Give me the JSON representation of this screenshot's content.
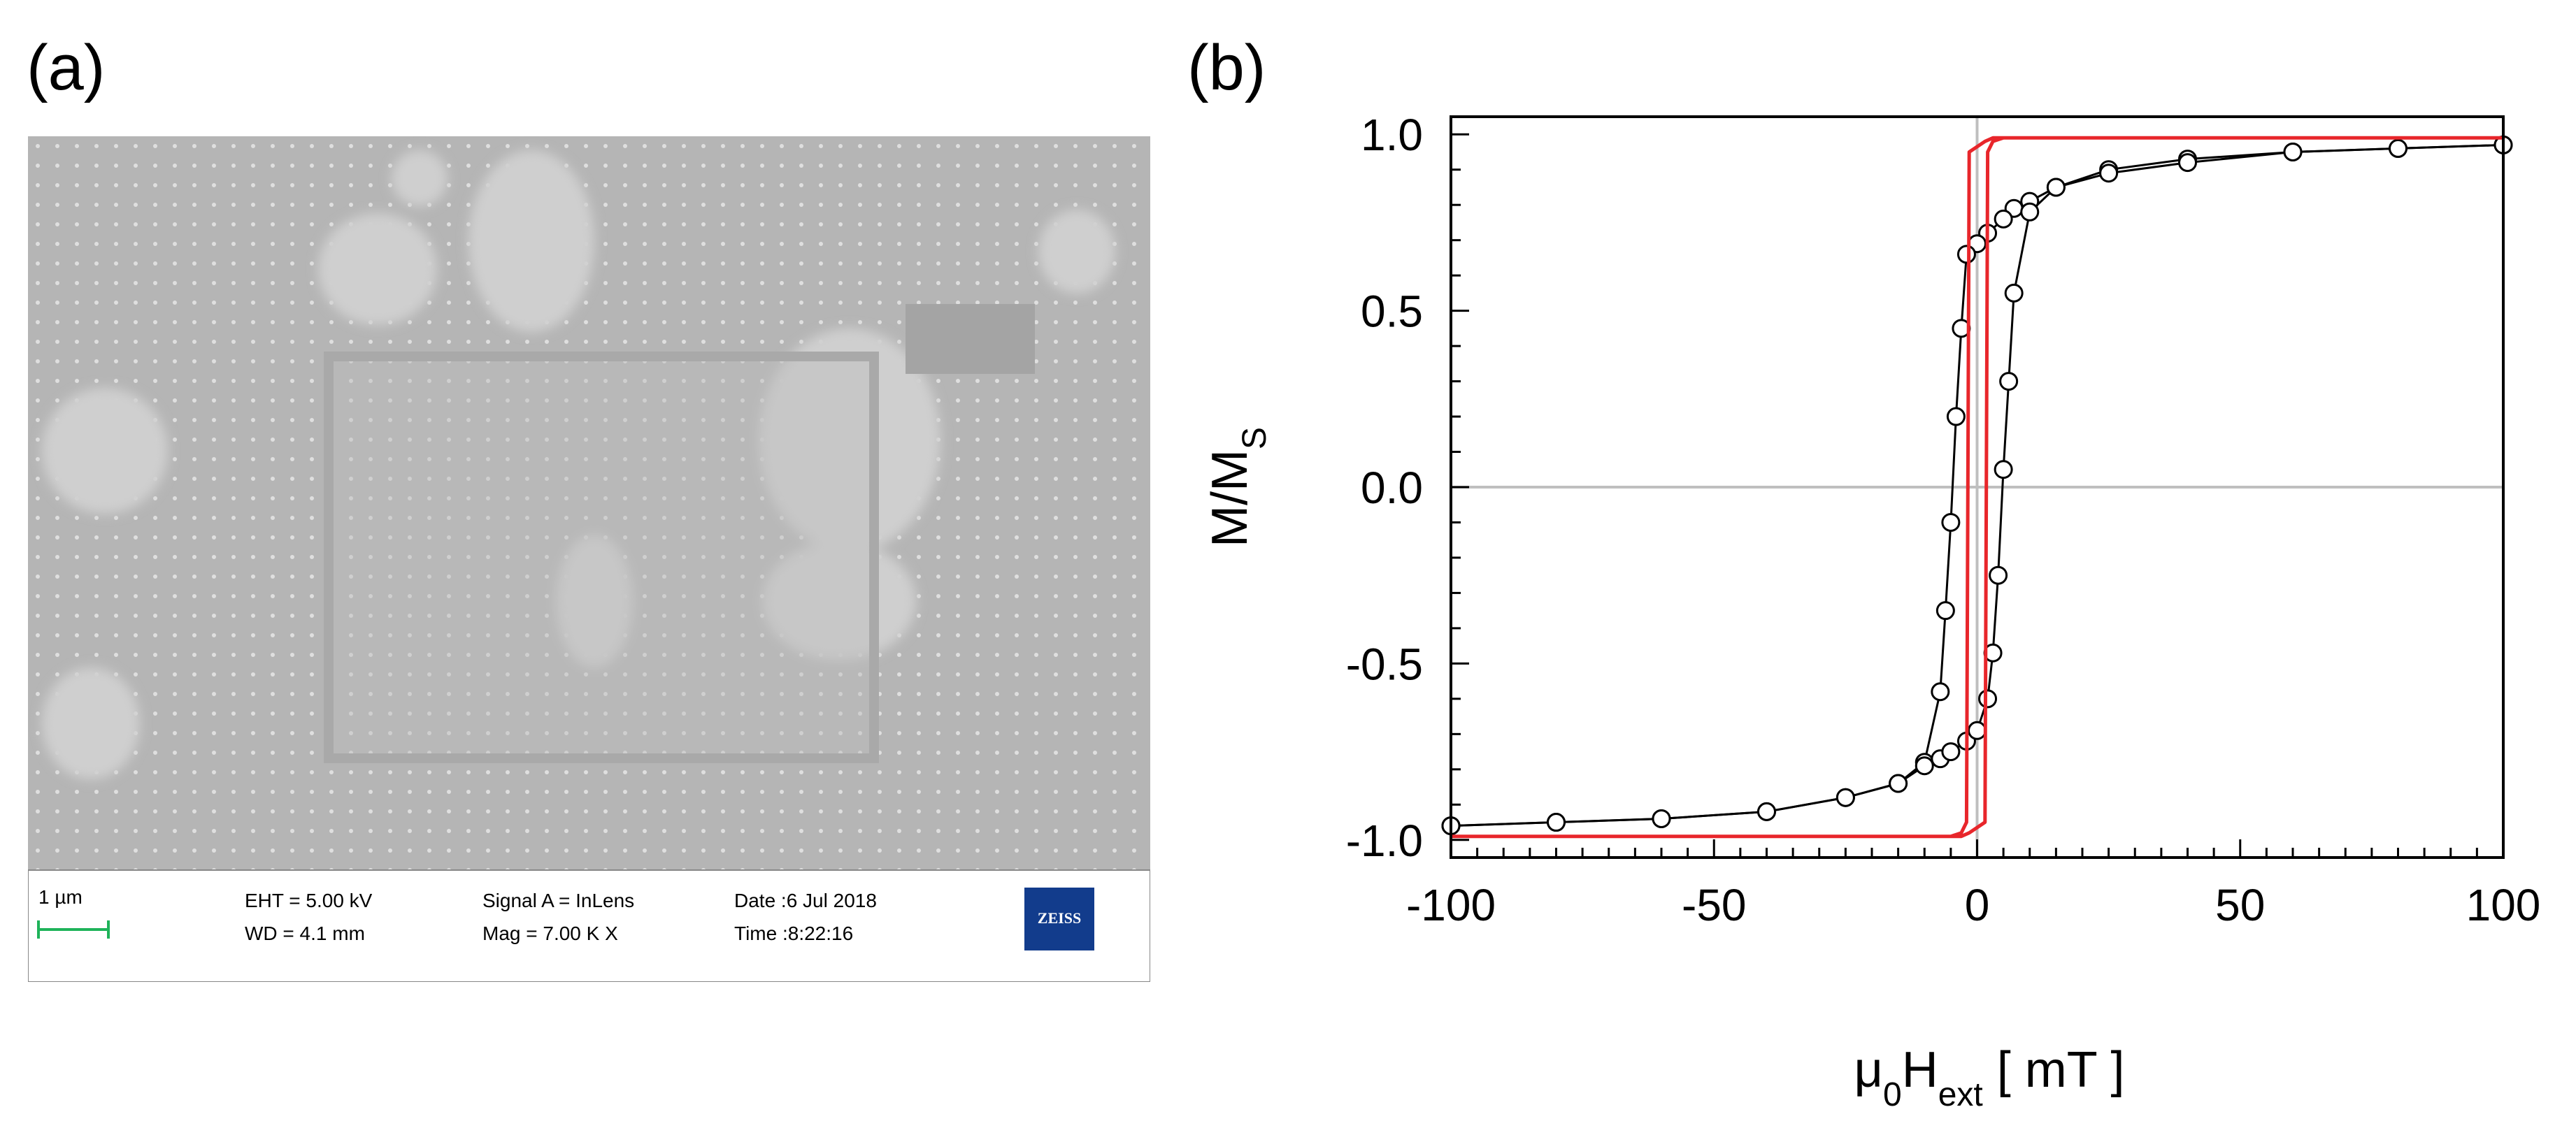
{
  "panel_a": {
    "label": "(a)",
    "scale_bar_label": "1 µm",
    "eht": "EHT =  5.00 kV",
    "wd": "WD =  4.1 mm",
    "signal": "Signal A = InLens",
    "mag": "Mag =   7.00 K X",
    "date": "Date :6 Jul 2018",
    "time": "Time :8:22:16",
    "logo_text": "ZEISS"
  },
  "panel_b": {
    "label": "(b)"
  },
  "colors": {
    "measured": "#000000",
    "simulated": "#e8262b",
    "zero_lines": "#bfbfbf"
  },
  "chart_data": {
    "type": "line",
    "xlabel": "μ0Hext [ mT ]",
    "ylabel": "M/MS",
    "xlim": [
      -100,
      100
    ],
    "ylim": [
      -1.05,
      1.05
    ],
    "xticks": [
      -100,
      -50,
      0,
      50,
      100
    ],
    "xtick_labels": [
      "-100",
      "-50",
      "0",
      "50",
      "100"
    ],
    "yticks": [
      -1.0,
      -0.5,
      0.0,
      0.5,
      1.0
    ],
    "ytick_labels": [
      "-1.0",
      "-0.5",
      "0.0",
      "0.5",
      "1.0"
    ],
    "grid": false,
    "series": [
      {
        "name": "measured (descending branch)",
        "marker": "open-circle",
        "x": [
          100,
          80,
          60,
          40,
          25,
          15,
          10,
          7,
          5,
          2,
          0,
          -2,
          -3,
          -4,
          -5,
          -6,
          -7,
          -10,
          -15,
          -25,
          -40,
          -60,
          -80,
          -100
        ],
        "y": [
          0.97,
          0.96,
          0.95,
          0.93,
          0.9,
          0.85,
          0.81,
          0.79,
          0.76,
          0.72,
          0.69,
          0.66,
          0.45,
          0.2,
          -0.1,
          -0.35,
          -0.58,
          -0.78,
          -0.84,
          -0.88,
          -0.92,
          -0.94,
          -0.95,
          -0.96
        ]
      },
      {
        "name": "measured (ascending branch)",
        "marker": "open-circle",
        "x": [
          -100,
          -80,
          -60,
          -40,
          -25,
          -15,
          -10,
          -7,
          -5,
          -2,
          0,
          2,
          3,
          4,
          5,
          6,
          7,
          10,
          15,
          25,
          40,
          60,
          80,
          100
        ],
        "y": [
          -0.96,
          -0.95,
          -0.94,
          -0.92,
          -0.88,
          -0.84,
          -0.79,
          -0.77,
          -0.75,
          -0.72,
          -0.69,
          -0.6,
          -0.47,
          -0.25,
          0.05,
          0.3,
          0.55,
          0.78,
          0.85,
          0.89,
          0.92,
          0.95,
          0.96,
          0.97
        ]
      },
      {
        "name": "simulated loop",
        "marker": "none",
        "x": [
          -100,
          -5,
          -3,
          -2,
          -1.5,
          1.5,
          3,
          100,
          100,
          5,
          3,
          2,
          1.5,
          -1.5,
          -3,
          -100
        ],
        "y": [
          -0.99,
          -0.99,
          -0.98,
          -0.95,
          0.95,
          0.98,
          0.99,
          0.99,
          0.99,
          0.99,
          0.98,
          0.95,
          -0.95,
          -0.98,
          -0.99,
          -0.99
        ]
      }
    ]
  }
}
